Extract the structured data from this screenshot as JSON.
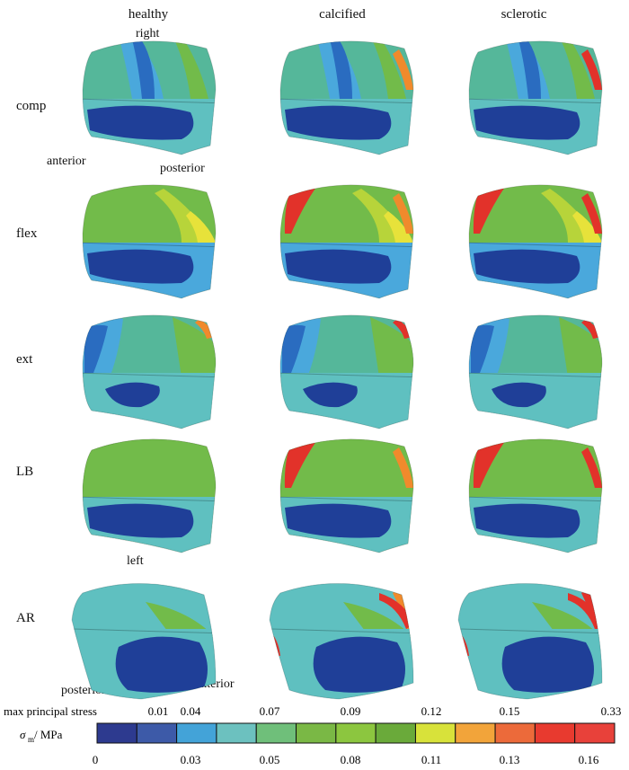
{
  "columns": [
    "healthy",
    "calcified",
    "sclerotic"
  ],
  "rows": [
    "comp",
    "flex",
    "ext",
    "LB",
    "AR"
  ],
  "orientation_labels": {
    "right": "right",
    "anterior_top": "anterior",
    "posterior_top": "posterior",
    "left": "left",
    "posterior_bottom": "posterior",
    "anterior_bottom": "anterior"
  },
  "legend": {
    "title": "max principal stress",
    "symbol": "σ",
    "subscript": "m",
    "unit": " / MPa",
    "upper_ticks": [
      "0.01",
      "0.04",
      "0.07",
      "0.09",
      "0.12",
      "0.15",
      "0.33"
    ],
    "lower_ticks": [
      "0",
      "0.03",
      "0.05",
      "0.08",
      "0.11",
      "0.13",
      "0.16"
    ],
    "colors": [
      "#2d3a8f",
      "#3d5aa8",
      "#43a3d8",
      "#6cc1bf",
      "#6fbf7a",
      "#7ab845",
      "#8cc63f",
      "#6aaa3a",
      "#d8e23a",
      "#f2a43a",
      "#ec6a3a",
      "#e83a2f",
      "#e8413a"
    ]
  },
  "palette": {
    "deep_blue": "#1f3f98",
    "blue": "#2a6cc0",
    "light_blue": "#4aa8dc",
    "cyan": "#5fc0c0",
    "teal": "#55b79a",
    "green": "#72bb4a",
    "yellow_green": "#b7d43a",
    "yellow": "#e7e23a",
    "orange": "#f08a2c",
    "red": "#e2322a"
  }
}
